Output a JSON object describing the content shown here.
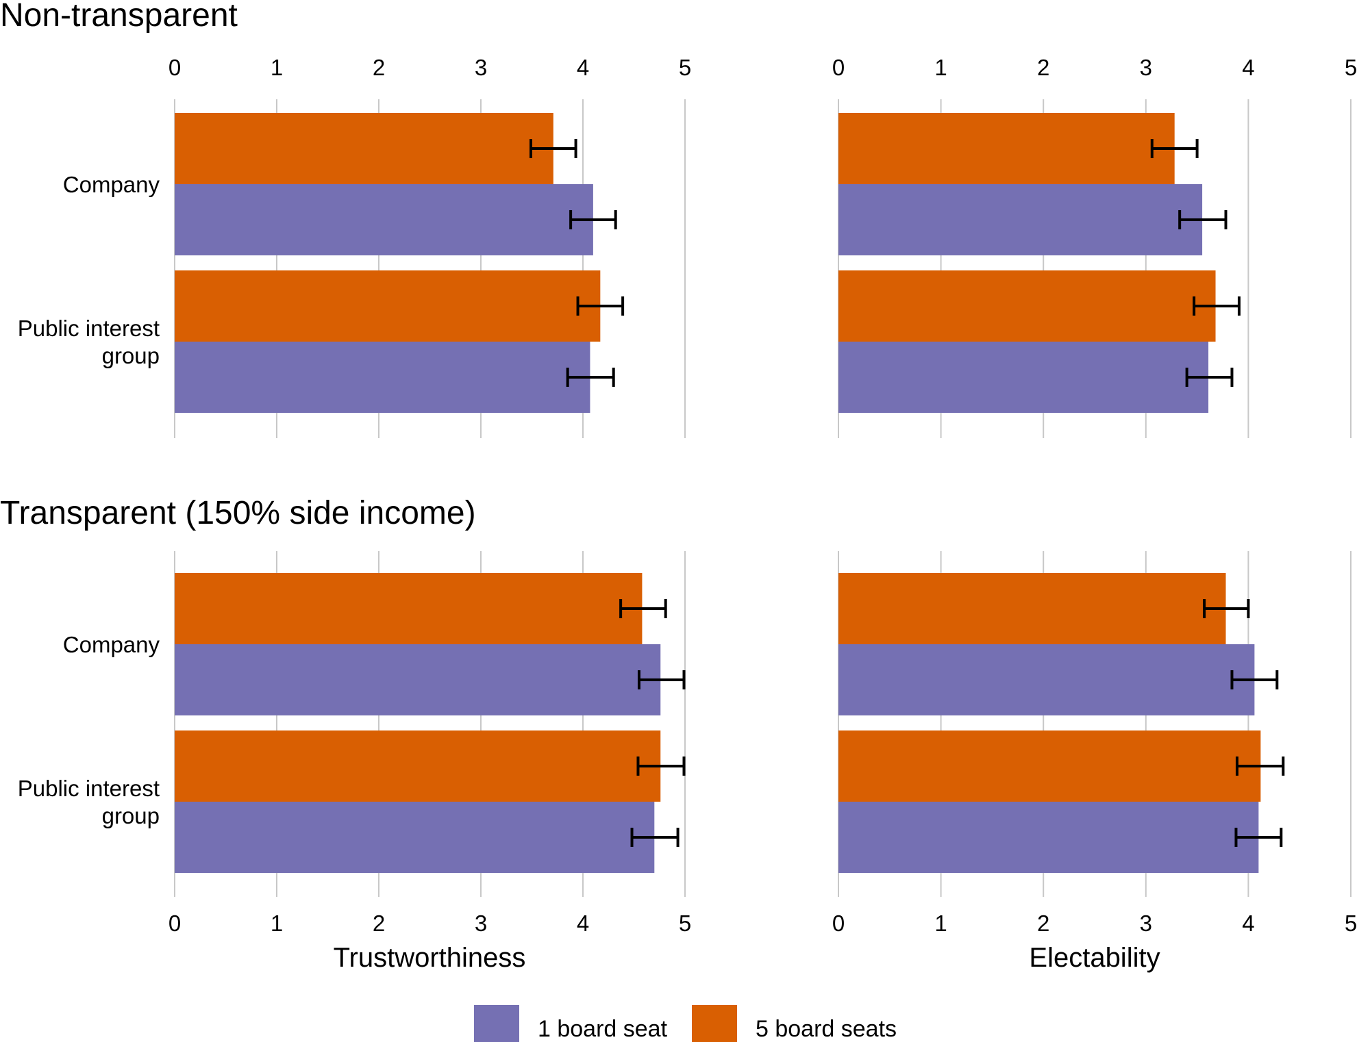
{
  "chart_data": {
    "type": "bar",
    "orientation": "horizontal",
    "grid": true,
    "legend_position": "bottom",
    "legend": [
      {
        "name": "1 board seat",
        "color": "#7570b3"
      },
      {
        "name": "5 board seats",
        "color": "#d95f02"
      }
    ],
    "categories": [
      "Company",
      "Public interest group"
    ],
    "category_labels": [
      [
        "Company"
      ],
      [
        "Public interest",
        "group"
      ]
    ],
    "xlim": [
      0,
      5
    ],
    "xticks": [
      "0",
      "1",
      "2",
      "3",
      "4",
      "5"
    ],
    "rows": [
      {
        "title": "Non-transparent",
        "panels": [
          {
            "xlabel": "Trustworthiness",
            "series": [
              {
                "name": "5 board seats",
                "values": [
                  3.71,
                  4.17
                ],
                "ci_low": [
                  3.49,
                  3.95
                ],
                "ci_high": [
                  3.93,
                  4.39
                ]
              },
              {
                "name": "1 board seat",
                "values": [
                  4.1,
                  4.07
                ],
                "ci_low": [
                  3.88,
                  3.85
                ],
                "ci_high": [
                  4.32,
                  4.3
                ]
              }
            ]
          },
          {
            "xlabel": "Electability",
            "series": [
              {
                "name": "5 board seats",
                "values": [
                  3.28,
                  3.68
                ],
                "ci_low": [
                  3.06,
                  3.47
                ],
                "ci_high": [
                  3.5,
                  3.91
                ]
              },
              {
                "name": "1 board seat",
                "values": [
                  3.55,
                  3.61
                ],
                "ci_low": [
                  3.33,
                  3.4
                ],
                "ci_high": [
                  3.78,
                  3.84
                ]
              }
            ]
          }
        ]
      },
      {
        "title": "Transparent (150% side income)",
        "panels": [
          {
            "xlabel": "Trustworthiness",
            "series": [
              {
                "name": "5 board seats",
                "values": [
                  4.58,
                  4.76
                ],
                "ci_low": [
                  4.37,
                  4.54
                ],
                "ci_high": [
                  4.81,
                  4.99
                ]
              },
              {
                "name": "1 board seat",
                "values": [
                  4.76,
                  4.7
                ],
                "ci_low": [
                  4.55,
                  4.48
                ],
                "ci_high": [
                  4.99,
                  4.93
                ]
              }
            ]
          },
          {
            "xlabel": "Electability",
            "series": [
              {
                "name": "5 board seats",
                "values": [
                  3.78,
                  4.12
                ],
                "ci_low": [
                  3.57,
                  3.89
                ],
                "ci_high": [
                  4.0,
                  4.34
                ]
              },
              {
                "name": "1 board seat",
                "values": [
                  4.06,
                  4.1
                ],
                "ci_low": [
                  3.84,
                  3.88
                ],
                "ci_high": [
                  4.28,
                  4.32
                ]
              }
            ]
          }
        ]
      }
    ],
    "xlabels": [
      "Trustworthiness",
      "Electability"
    ]
  }
}
